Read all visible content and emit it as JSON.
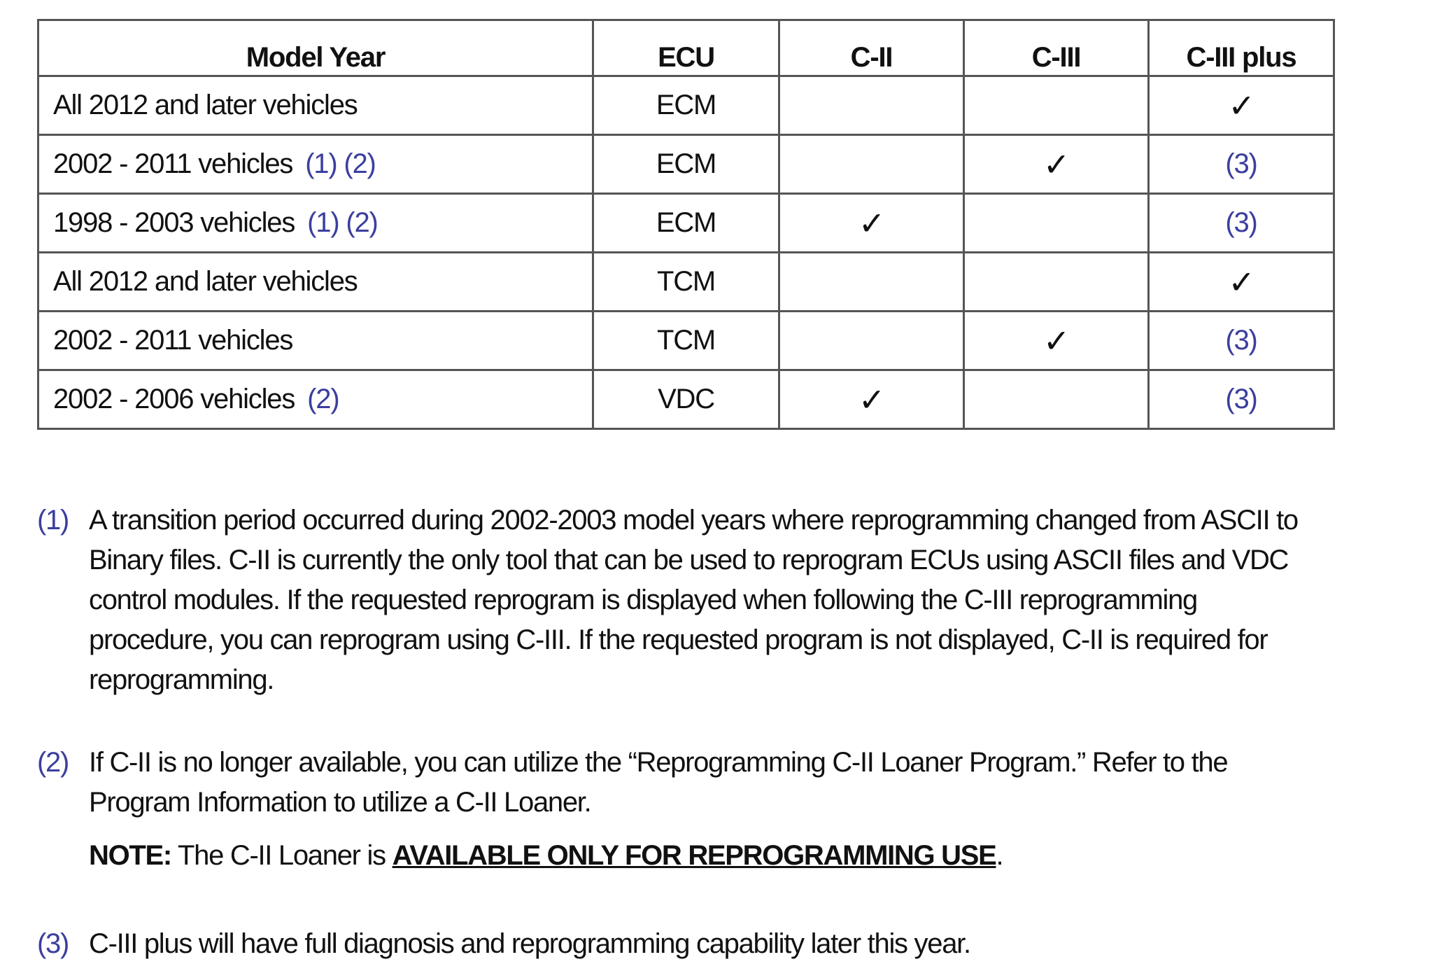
{
  "table": {
    "headers": [
      "Model Year",
      "ECU",
      "C-II",
      "C-III",
      "C-III plus"
    ],
    "rows": [
      {
        "model_year": "All 2012 and later vehicles",
        "refs": "",
        "ecu": "ECM",
        "c2": "",
        "c3": "",
        "c3plus": "✓"
      },
      {
        "model_year": "2002 - 2011 vehicles",
        "refs": "(1) (2)",
        "ecu": "ECM",
        "c2": "",
        "c3": "✓",
        "c3plus": "(3)"
      },
      {
        "model_year": "1998 - 2003 vehicles",
        "refs": "(1) (2)",
        "ecu": "ECM",
        "c2": "✓",
        "c3": "",
        "c3plus": "(3)"
      },
      {
        "model_year": "All 2012 and later vehicles",
        "refs": "",
        "ecu": "TCM",
        "c2": "",
        "c3": "",
        "c3plus": "✓"
      },
      {
        "model_year": "2002 - 2011 vehicles",
        "refs": "",
        "ecu": "TCM",
        "c2": "",
        "c3": "✓",
        "c3plus": "(3)"
      },
      {
        "model_year": "2002 - 2006 vehicles",
        "refs": "(2)",
        "ecu": "VDC",
        "c2": "✓",
        "c3": "",
        "c3plus": "(3)"
      }
    ]
  },
  "footnotes": [
    {
      "num": "(1)",
      "lines": [
        "A transition period occurred during 2002-2003 model years where reprogramming changed from ASCII to",
        "Binary files. C-II is currently the only tool that can be used to reprogram ECUs using ASCII files and VDC",
        "control modules. If the requested reprogram is displayed when following the C-III reprogramming",
        "procedure, you can reprogram using C-III. If the requested program is not displayed, C-II is required for",
        "reprogramming."
      ]
    },
    {
      "num": "(2)",
      "lines": [
        "If C-II is no longer available, you can utilize the “Reprogramming C-II Loaner Program.” Refer to the",
        "Program Information to utilize a C-II Loaner."
      ]
    },
    {
      "num": "(3)",
      "lines": [
        "C-III plus will have full diagnosis and reprogramming capability later this year."
      ]
    }
  ],
  "note": {
    "label": "NOTE:",
    "text": " The C-II Loaner is ",
    "emphasis": "AVAILABLE ONLY FOR  REPROGRAMMING USE",
    "end": "."
  },
  "colors": {
    "reference_blue": "#3b3f9e",
    "border": "#555555"
  }
}
